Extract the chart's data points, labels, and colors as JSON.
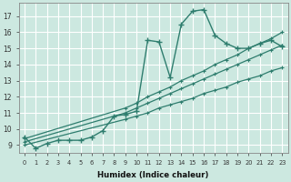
{
  "xlabel": "Humidex (Indice chaleur)",
  "bg_color": "#cce8e0",
  "grid_color": "#b0d4cc",
  "line_color": "#2e7d6e",
  "xlim": [
    -0.5,
    23.5
  ],
  "ylim": [
    8.5,
    17.8
  ],
  "xticks": [
    0,
    1,
    2,
    3,
    4,
    5,
    6,
    7,
    8,
    9,
    10,
    11,
    12,
    13,
    14,
    15,
    16,
    17,
    18,
    19,
    20,
    21,
    22,
    23
  ],
  "yticks": [
    9,
    10,
    11,
    12,
    13,
    14,
    15,
    16,
    17
  ],
  "series1_x": [
    0,
    1,
    2,
    3,
    4,
    5,
    6,
    7,
    8,
    9,
    10,
    11,
    12,
    13,
    14,
    15,
    16,
    17,
    18,
    19,
    20,
    21,
    22,
    23
  ],
  "series1_y": [
    9.5,
    8.8,
    9.1,
    9.3,
    9.3,
    9.3,
    9.5,
    9.9,
    10.8,
    10.9,
    11.1,
    15.5,
    15.4,
    13.2,
    16.5,
    17.3,
    17.4,
    15.8,
    15.3,
    15.0,
    15.0,
    15.3,
    15.5,
    15.1
  ],
  "series2_x": [
    0,
    9,
    10,
    11,
    12,
    13,
    14,
    15,
    16,
    17,
    18,
    19,
    20,
    21,
    22,
    23
  ],
  "series2_y": [
    9.0,
    10.6,
    10.8,
    11.0,
    11.3,
    11.5,
    11.7,
    11.9,
    12.2,
    12.4,
    12.6,
    12.9,
    13.1,
    13.3,
    13.6,
    13.8
  ],
  "series3_x": [
    0,
    9,
    10,
    11,
    12,
    13,
    14,
    15,
    16,
    17,
    18,
    19,
    20,
    21,
    22,
    23
  ],
  "series3_y": [
    9.2,
    11.0,
    11.3,
    11.6,
    11.9,
    12.2,
    12.5,
    12.8,
    13.1,
    13.4,
    13.7,
    14.0,
    14.3,
    14.6,
    14.9,
    15.2
  ],
  "series4_x": [
    0,
    9,
    10,
    11,
    12,
    13,
    14,
    15,
    16,
    17,
    18,
    19,
    20,
    21,
    22,
    23
  ],
  "series4_y": [
    9.4,
    11.3,
    11.6,
    12.0,
    12.3,
    12.6,
    13.0,
    13.3,
    13.6,
    14.0,
    14.3,
    14.6,
    15.0,
    15.3,
    15.6,
    16.0
  ]
}
